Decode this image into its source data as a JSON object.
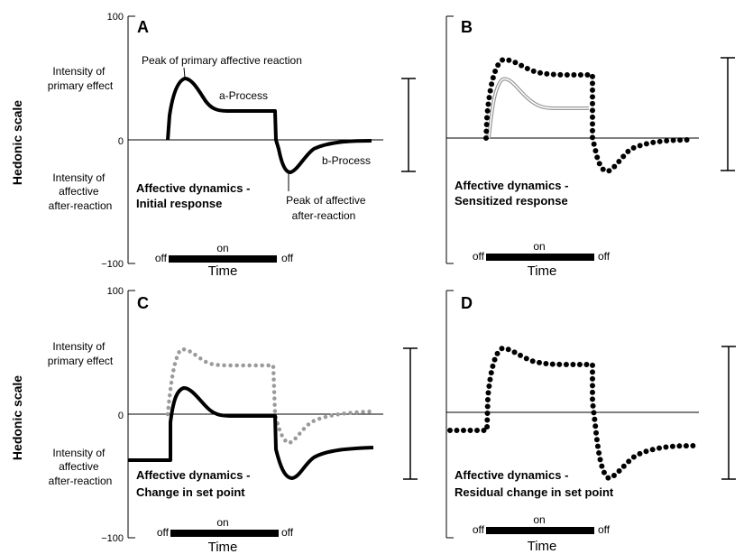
{
  "figure": {
    "y_axis_label": "Hedonic scale",
    "tick_top": "100",
    "tick_zero": "0",
    "tick_bottom": "−100",
    "x_axis_label": "Time",
    "stim_off": "off",
    "stim_on": "on",
    "side_label_primary": [
      "Intensity of",
      "primary effect"
    ],
    "side_label_after": [
      "Intensity of",
      "affective",
      "after-reaction"
    ]
  },
  "panels": {
    "A": {
      "letter": "A",
      "caption": [
        "Affective dynamics -",
        "Initial response"
      ],
      "annotations": {
        "peak_primary": "Peak of primary affective reaction",
        "a_process": "a-Process",
        "b_process": "b-Process",
        "peak_after": [
          "Peak of affective",
          "after-reaction"
        ]
      }
    },
    "B": {
      "letter": "B",
      "caption": [
        "Affective dynamics -",
        "Sensitized response"
      ]
    },
    "C": {
      "letter": "C",
      "caption": [
        "Affective dynamics -",
        "Change in set point"
      ]
    },
    "D": {
      "letter": "D",
      "caption": [
        "Affective dynamics -",
        "Residual change in set point"
      ]
    }
  },
  "colors": {
    "ink": "#000000",
    "gray_trace": "#9a9a9a"
  }
}
